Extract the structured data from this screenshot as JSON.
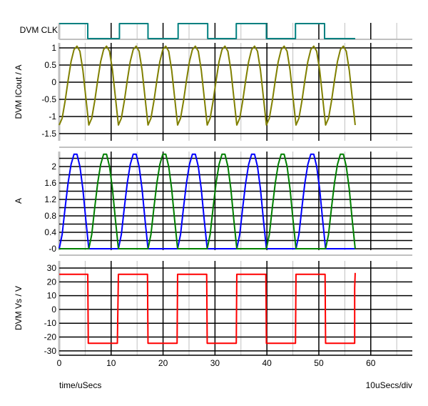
{
  "chart_data": {
    "type": "line",
    "xlabel": "time/uSecs",
    "x_scale_note": "10uSecs/div",
    "xlim": [
      0,
      68
    ],
    "x_ticks": [
      0,
      10,
      20,
      30,
      40,
      50,
      60
    ],
    "grid": true,
    "colors": {
      "clk": "#008080",
      "icout": "#808000",
      "blue": "#0000ff",
      "green": "#008000",
      "vs": "#ff0000",
      "grid_major": "#000000",
      "grid_minor": "#c0c0c0"
    },
    "panels": [
      {
        "id": "clk",
        "ylabel": "DVM CLK",
        "ylim": [
          -0.05,
          1.05
        ],
        "y_ticks": [],
        "series": [
          {
            "color": "#008080",
            "points": [
              [
                0,
                1
              ],
              [
                5.5,
                1
              ],
              [
                5.5,
                0
              ],
              [
                11.6,
                0
              ],
              [
                11.6,
                1
              ],
              [
                17.1,
                1
              ],
              [
                17.1,
                0
              ],
              [
                22.9,
                0
              ],
              [
                22.9,
                1
              ],
              [
                28.6,
                1
              ],
              [
                28.6,
                0
              ],
              [
                34.1,
                0
              ],
              [
                34.1,
                1
              ],
              [
                39.9,
                1
              ],
              [
                39.9,
                0
              ],
              [
                45.5,
                0
              ],
              [
                45.5,
                1
              ],
              [
                51.1,
                1
              ],
              [
                51.1,
                0
              ],
              [
                57,
                0
              ]
            ]
          }
        ]
      },
      {
        "id": "icout",
        "ylabel": "DVM ICout / A",
        "ylim": [
          -1.71,
          1.146
        ],
        "y_ticks": [
          1,
          0.5,
          0,
          -0.5,
          -1,
          -1.5
        ],
        "y_tick_labels": [
          "1",
          "0.5",
          "0",
          "-0.5",
          "-1",
          "-1.5"
        ],
        "grid_lines": [
          1,
          0.5,
          0,
          -0.5,
          -1,
          -1.5
        ],
        "series": [
          {
            "color": "#808000",
            "x_ref": "sampled_x",
            "values": [
              -1.25,
              -1.05,
              -0.55,
              0.05,
              0.6,
              0.95,
              1.05,
              0.9,
              0.35,
              -0.45,
              -1.25,
              -1.05,
              -0.55,
              0.05,
              0.6,
              0.95,
              1.05,
              0.9,
              0.35,
              -0.45,
              -1.25,
              -1.05,
              -0.55,
              0.05,
              0.6,
              0.95,
              1.05,
              0.9,
              0.35,
              -0.45,
              -1.25,
              -1.05,
              -0.55,
              0.05,
              0.6,
              0.95,
              1.05,
              0.9,
              0.35,
              -0.45,
              -1.25,
              -1.05,
              -0.55,
              0.05,
              0.6,
              0.95,
              1.05,
              0.9,
              0.35,
              -0.45,
              -1.25,
              -1.05,
              -0.55,
              0.05,
              0.6,
              0.95,
              1.05,
              0.9,
              0.35,
              -0.45,
              -1.25,
              -1.05,
              -0.55,
              0.05,
              0.6,
              0.95,
              1.05,
              0.9,
              0.35,
              -0.45,
              -1.25,
              -1.05,
              -0.55,
              0.05,
              0.6,
              0.95,
              1.05,
              0.9,
              0.35,
              -0.45,
              -1.25,
              -1.05,
              -0.55,
              0.05,
              0.6,
              0.95,
              1.05,
              0.9,
              0.35,
              -0.45,
              -1.25,
              -1.05,
              -0.55,
              0.05,
              0.6,
              0.95,
              1.05,
              0.9,
              0.35,
              -0.45,
              -1.25
            ]
          }
        ]
      },
      {
        "id": "current",
        "ylabel": "A",
        "ylim": [
          -0.035,
          2.365
        ],
        "y_ticks": [
          2,
          1.6,
          1.2,
          0.8,
          0.4,
          0
        ],
        "y_tick_labels": [
          "2",
          "1.6",
          "1.2",
          "0.8",
          "0.4",
          "-0"
        ],
        "grid_lines": [
          2.2,
          2,
          1.8,
          1.6,
          1.4,
          1.2,
          1,
          0.8,
          0.6,
          0.4,
          0.2,
          0
        ],
        "series": [
          {
            "color": "#0000ff",
            "x_ref": "sampled_x",
            "values": [
              0,
              0.35,
              1.0,
              1.6,
              2.05,
              2.3,
              2.3,
              2.0,
              1.45,
              0.7,
              0,
              0,
              0,
              0,
              0,
              0,
              0,
              0,
              0,
              0,
              0,
              0.35,
              1.0,
              1.6,
              2.05,
              2.3,
              2.3,
              2.0,
              1.45,
              0.7,
              0,
              0,
              0,
              0,
              0,
              0,
              0,
              0,
              0,
              0,
              0,
              0.35,
              1.0,
              1.6,
              2.05,
              2.3,
              2.3,
              2.0,
              1.45,
              0.7,
              0,
              0,
              0,
              0,
              0,
              0,
              0,
              0,
              0,
              0,
              0,
              0.35,
              1.0,
              1.6,
              2.05,
              2.3,
              2.3,
              2.0,
              1.45,
              0.7,
              0,
              0,
              0,
              0,
              0,
              0,
              0,
              0,
              0,
              0,
              0,
              0.35,
              1.0,
              1.6,
              2.05,
              2.3,
              2.3,
              2.0,
              1.45,
              0.7,
              0,
              0,
              0,
              0,
              0,
              0,
              0,
              0,
              0,
              0,
              0
            ]
          },
          {
            "color": "#008000",
            "x_ref": "sampled_x",
            "values": [
              0,
              0,
              0,
              0,
              0,
              0,
              0,
              0,
              0,
              0,
              0,
              0.35,
              1.0,
              1.6,
              2.05,
              2.3,
              2.3,
              2.0,
              1.45,
              0.7,
              0,
              0,
              0,
              0,
              0,
              0,
              0,
              0,
              0,
              0,
              0,
              0.35,
              1.0,
              1.6,
              2.05,
              2.3,
              2.3,
              2.0,
              1.45,
              0.7,
              0,
              0,
              0,
              0,
              0,
              0,
              0,
              0,
              0,
              0,
              0,
              0.35,
              1.0,
              1.6,
              2.05,
              2.3,
              2.3,
              2.0,
              1.45,
              0.7,
              0,
              0,
              0,
              0,
              0,
              0,
              0,
              0,
              0,
              0,
              0,
              0.35,
              1.0,
              1.6,
              2.05,
              2.3,
              2.3,
              2.0,
              1.45,
              0.7,
              0,
              0,
              0,
              0,
              0,
              0,
              0,
              0,
              0,
              0,
              0,
              0.35,
              1.0,
              1.6,
              2.05,
              2.3,
              2.3,
              2.0,
              1.45,
              0.7,
              0
            ]
          }
        ]
      },
      {
        "id": "vs",
        "ylabel": "DVM Vs / V",
        "ylim": [
          -33.2,
          35.2
        ],
        "y_ticks": [
          30,
          20,
          10,
          0,
          -10,
          -20,
          -30
        ],
        "y_tick_labels": [
          "30",
          "20",
          "10",
          "0",
          "-10",
          "-20",
          "-30"
        ],
        "grid_lines": [
          30,
          20,
          10,
          0,
          -10,
          -20,
          -30
        ],
        "series": [
          {
            "color": "#ff0000",
            "points": [
              [
                0,
                25.5
              ],
              [
                5.5,
                25.5
              ],
              [
                5.6,
                -24.5
              ],
              [
                11.2,
                -24.5
              ],
              [
                11.4,
                25.5
              ],
              [
                17,
                25.5
              ],
              [
                17.1,
                -24.5
              ],
              [
                22.7,
                -24.5
              ],
              [
                22.8,
                25.5
              ],
              [
                28.4,
                25.5
              ],
              [
                28.5,
                -24.5
              ],
              [
                34.1,
                -24.5
              ],
              [
                34.2,
                25.5
              ],
              [
                39.8,
                25.5
              ],
              [
                39.9,
                -24.5
              ],
              [
                45.5,
                -24.5
              ],
              [
                45.6,
                25.5
              ],
              [
                51.2,
                25.5
              ],
              [
                51.3,
                -24.5
              ],
              [
                56.9,
                -24.5
              ],
              [
                56.9,
                15.5
              ],
              [
                57,
                26.5
              ]
            ]
          }
        ]
      }
    ],
    "sampled_x": [
      0,
      0.57,
      1.14,
      1.71,
      2.28,
      2.85,
      3.42,
      3.99,
      4.56,
      5.13,
      5.7,
      6.27,
      6.84,
      7.41,
      7.98,
      8.55,
      9.12,
      9.69,
      10.26,
      10.83,
      11.4,
      11.97,
      12.54,
      13.11,
      13.68,
      14.25,
      14.82,
      15.39,
      15.96,
      16.53,
      17.1,
      17.67,
      18.24,
      18.81,
      19.38,
      19.95,
      20.52,
      21.09,
      21.66,
      22.23,
      22.8,
      23.37,
      23.94,
      24.51,
      25.08,
      25.65,
      26.22,
      26.79,
      27.36,
      27.93,
      28.5,
      29.07,
      29.64,
      30.21,
      30.78,
      31.35,
      31.92,
      32.49,
      33.06,
      33.63,
      34.2,
      34.77,
      35.34,
      35.91,
      36.48,
      37.05,
      37.62,
      38.19,
      38.76,
      39.33,
      39.9,
      40.47,
      41.04,
      41.61,
      42.18,
      42.75,
      43.32,
      43.89,
      44.46,
      45.03,
      45.6,
      46.17,
      46.74,
      47.31,
      47.88,
      48.45,
      49.02,
      49.59,
      50.16,
      50.73,
      51.3,
      51.87,
      52.44,
      53.01,
      53.58,
      54.15,
      54.72,
      55.29,
      55.86,
      56.43,
      57
    ]
  }
}
